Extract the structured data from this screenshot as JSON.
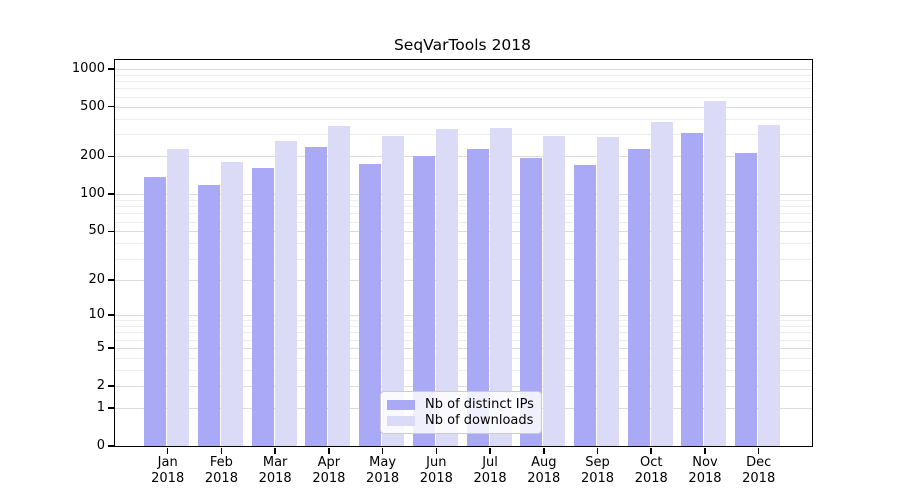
{
  "title": "SeqVarTools 2018",
  "chart_data": {
    "type": "bar",
    "title": "SeqVarTools 2018",
    "categories": [
      "Jan",
      "Feb",
      "Mar",
      "Apr",
      "May",
      "Jun",
      "Jul",
      "Aug",
      "Sep",
      "Oct",
      "Nov",
      "Dec"
    ],
    "x_sublabel": "2018",
    "series": [
      {
        "name": "Nb of distinct IPs",
        "color": "#a9a9f5",
        "values": [
          137,
          119,
          163,
          237,
          175,
          202,
          231,
          193,
          171,
          230,
          306,
          215
        ]
      },
      {
        "name": "Nb of downloads",
        "color": "#dbdbf8",
        "values": [
          228,
          182,
          268,
          350,
          292,
          333,
          340,
          292,
          288,
          378,
          550,
          357
        ]
      }
    ],
    "xlabel": "",
    "ylabel": "",
    "yscale": "log1p",
    "ylim": [
      0,
      1000
    ],
    "yticks": [
      0,
      1,
      2,
      5,
      10,
      20,
      50,
      100,
      200,
      500,
      1000
    ],
    "minor_yticks": [
      3,
      4,
      6,
      7,
      8,
      9,
      30,
      40,
      60,
      70,
      80,
      90,
      300,
      400,
      600,
      700,
      800,
      900
    ],
    "grid": true,
    "legend_position": "lower center"
  },
  "colors": {
    "bar_distinct_ips": "#a9a9f5",
    "bar_downloads": "#dbdbf8",
    "axis": "#000000",
    "grid_major": "#dcdcdc",
    "grid_minor": "#eeeeee",
    "background": "#ffffff"
  }
}
